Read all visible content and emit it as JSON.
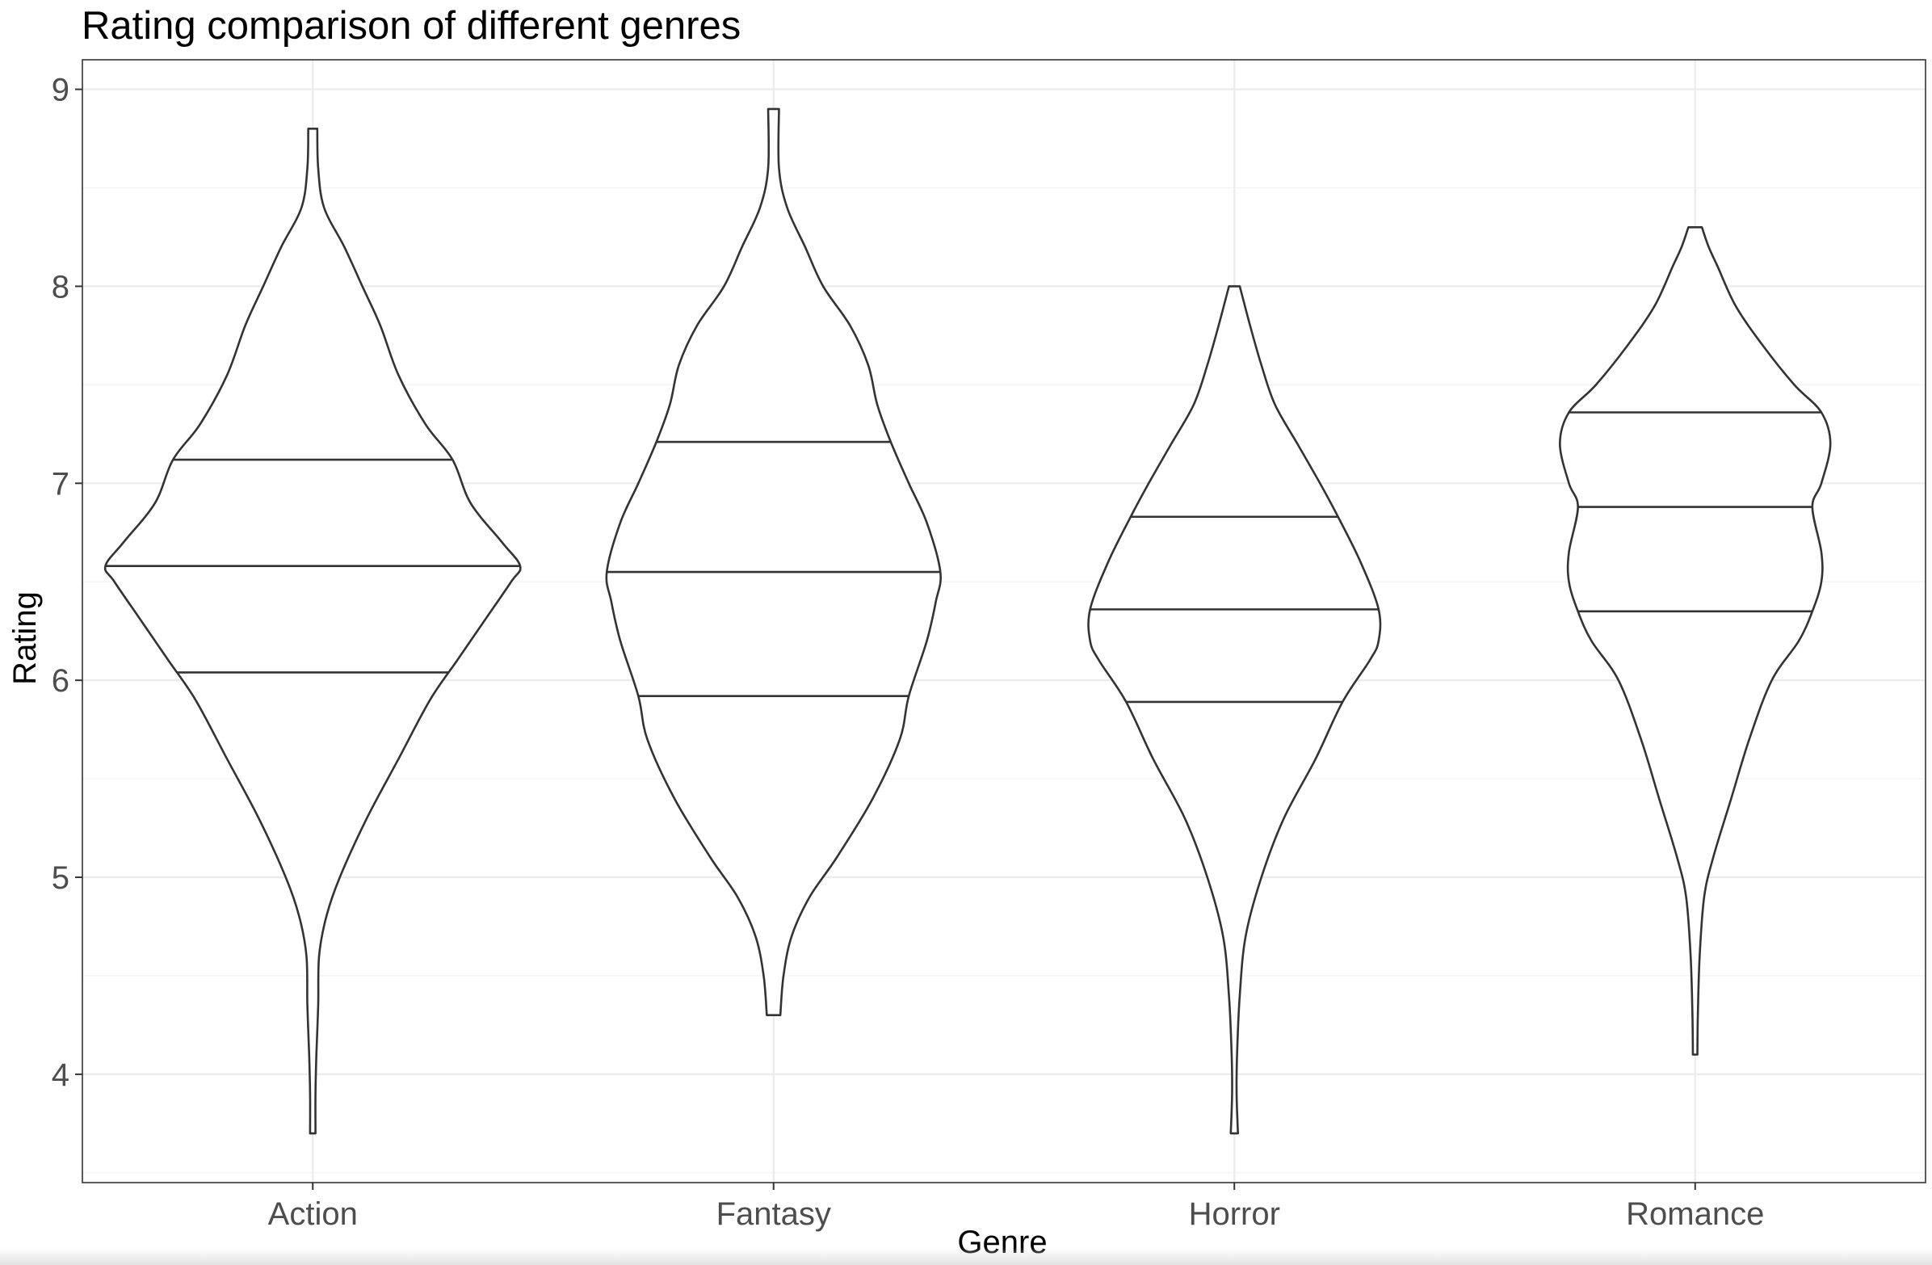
{
  "chart_data": {
    "type": "violin",
    "title": "Rating comparison of different genres",
    "xlabel": "Genre",
    "ylabel": "Rating",
    "ylim": [
      3.45,
      9.15
    ],
    "y_ticks": [
      4,
      5,
      6,
      7,
      8,
      9
    ],
    "grid": true,
    "legend": "none",
    "categories": [
      "Action",
      "Fantasy",
      "Horror",
      "Romance"
    ],
    "series": [
      {
        "category": "Action",
        "min": 3.7,
        "max": 8.8,
        "quantiles": {
          "q25": 6.04,
          "median": 6.58,
          "q75": 7.12
        },
        "density_profile": [
          [
            3.7,
            0.006
          ],
          [
            3.9,
            0.006
          ],
          [
            4.1,
            0.008
          ],
          [
            4.35,
            0.012
          ],
          [
            4.6,
            0.014
          ],
          [
            4.8,
            0.03
          ],
          [
            5.0,
            0.06
          ],
          [
            5.3,
            0.12
          ],
          [
            5.6,
            0.19
          ],
          [
            5.9,
            0.26
          ],
          [
            6.1,
            0.32
          ],
          [
            6.3,
            0.38
          ],
          [
            6.5,
            0.44
          ],
          [
            6.58,
            0.46
          ],
          [
            6.7,
            0.42
          ],
          [
            6.9,
            0.35
          ],
          [
            7.12,
            0.31
          ],
          [
            7.3,
            0.25
          ],
          [
            7.55,
            0.19
          ],
          [
            7.8,
            0.15
          ],
          [
            8.0,
            0.11
          ],
          [
            8.2,
            0.07
          ],
          [
            8.4,
            0.025
          ],
          [
            8.6,
            0.012
          ],
          [
            8.8,
            0.01
          ]
        ]
      },
      {
        "category": "Fantasy",
        "min": 4.3,
        "max": 8.9,
        "quantiles": {
          "q25": 5.92,
          "median": 6.55,
          "q75": 7.21
        },
        "density_profile": [
          [
            4.3,
            0.015
          ],
          [
            4.5,
            0.022
          ],
          [
            4.7,
            0.04
          ],
          [
            4.9,
            0.08
          ],
          [
            5.1,
            0.14
          ],
          [
            5.4,
            0.22
          ],
          [
            5.7,
            0.28
          ],
          [
            5.92,
            0.3
          ],
          [
            6.2,
            0.34
          ],
          [
            6.4,
            0.36
          ],
          [
            6.55,
            0.37
          ],
          [
            6.8,
            0.34
          ],
          [
            7.0,
            0.3
          ],
          [
            7.21,
            0.26
          ],
          [
            7.4,
            0.23
          ],
          [
            7.6,
            0.21
          ],
          [
            7.8,
            0.17
          ],
          [
            8.0,
            0.11
          ],
          [
            8.2,
            0.07
          ],
          [
            8.4,
            0.03
          ],
          [
            8.6,
            0.012
          ],
          [
            8.9,
            0.012
          ]
        ]
      },
      {
        "category": "Horror",
        "min": 3.7,
        "max": 8.0,
        "quantiles": {
          "q25": 5.89,
          "median": 6.36,
          "q75": 6.83
        },
        "density_profile": [
          [
            3.7,
            0.008
          ],
          [
            3.9,
            0.005
          ],
          [
            4.1,
            0.006
          ],
          [
            4.4,
            0.012
          ],
          [
            4.7,
            0.025
          ],
          [
            5.0,
            0.06
          ],
          [
            5.3,
            0.11
          ],
          [
            5.6,
            0.18
          ],
          [
            5.89,
            0.24
          ],
          [
            6.1,
            0.3
          ],
          [
            6.2,
            0.32
          ],
          [
            6.36,
            0.32
          ],
          [
            6.6,
            0.28
          ],
          [
            6.83,
            0.23
          ],
          [
            7.0,
            0.19
          ],
          [
            7.2,
            0.14
          ],
          [
            7.4,
            0.09
          ],
          [
            7.6,
            0.06
          ],
          [
            7.8,
            0.035
          ],
          [
            8.0,
            0.012
          ]
        ]
      },
      {
        "category": "Romance",
        "min": 4.1,
        "max": 8.3,
        "quantiles": {
          "q25": 6.35,
          "median": 6.88,
          "q75": 7.36
        },
        "density_profile": [
          [
            4.1,
            0.005
          ],
          [
            4.3,
            0.006
          ],
          [
            4.6,
            0.01
          ],
          [
            4.9,
            0.02
          ],
          [
            5.1,
            0.04
          ],
          [
            5.4,
            0.08
          ],
          [
            5.7,
            0.12
          ],
          [
            6.0,
            0.17
          ],
          [
            6.2,
            0.23
          ],
          [
            6.35,
            0.26
          ],
          [
            6.5,
            0.28
          ],
          [
            6.65,
            0.28
          ],
          [
            6.88,
            0.26
          ],
          [
            7.0,
            0.28
          ],
          [
            7.2,
            0.3
          ],
          [
            7.36,
            0.28
          ],
          [
            7.5,
            0.22
          ],
          [
            7.7,
            0.15
          ],
          [
            7.9,
            0.09
          ],
          [
            8.1,
            0.05
          ],
          [
            8.2,
            0.03
          ],
          [
            8.3,
            0.015
          ]
        ]
      }
    ]
  }
}
